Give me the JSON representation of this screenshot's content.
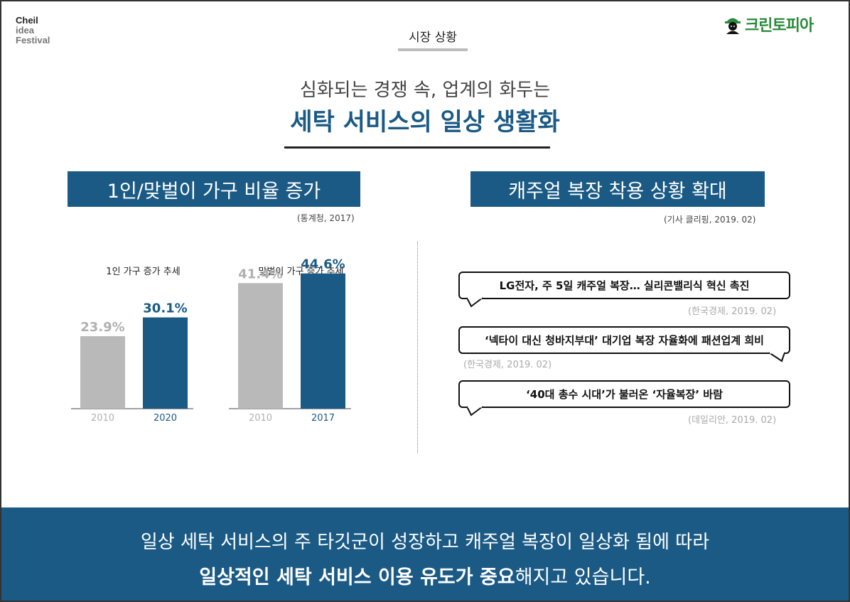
{
  "brand": {
    "line1": "Cheil",
    "line2": "idea",
    "line3": "Festival"
  },
  "logo": {
    "icon": "worker-helmet-icon",
    "text": "크린토피아",
    "color": "#2a8a3a"
  },
  "section_tag": "시장 상황",
  "subtitle": "심화되는 경쟁 속, 업계의 화두는",
  "headline": "세탁 서비스의 일상 생활화",
  "left_panel": {
    "title": "1인/맞벌이 가구 비율 증가",
    "source": "(통계청, 2017)"
  },
  "right_panel": {
    "title": "캐주얼 복장 착용 상황 확대",
    "source": "(기사 클리핑, 2019. 02)",
    "articles": [
      {
        "headline": "LG전자, 주 5일 캐주얼 복장… 실리콘밸리식 혁신 촉진",
        "citation": "(한국경제, 2019. 02)"
      },
      {
        "headline": "‘넥타이 대신 청바지부대’ 대기업 복장 자율화에 패션업계 희비",
        "citation": "(한국경제, 2019. 02)"
      },
      {
        "headline": "‘40대 총수 시대’가 불러온 ‘자율복장’ 바람",
        "citation": "(데일리안, 2019. 02)"
      }
    ]
  },
  "chart_data": [
    {
      "type": "bar",
      "title": "1인 가구 증가 추세",
      "categories": [
        "2010",
        "2020"
      ],
      "values": [
        23.9,
        30.1
      ],
      "value_labels": [
        "23.9%",
        "30.1%"
      ],
      "colors": [
        "#b9b9b9",
        "#1b5a85"
      ],
      "ylim": [
        0,
        45
      ]
    },
    {
      "type": "bar",
      "title": "맞벌이 가구 증가 추세",
      "categories": [
        "2010",
        "2017"
      ],
      "values": [
        41.4,
        44.6
      ],
      "value_labels": [
        "41.4%",
        "44.6%"
      ],
      "colors": [
        "#b9b9b9",
        "#1b5a85"
      ],
      "ylim": [
        0,
        45
      ]
    }
  ],
  "footer": {
    "line1": "일상 세탁 서비스의 주 타깃군이 성장하고 캐주얼 복장이 일상화 됨에 따라",
    "line2_bold": "일상적인 세탁 서비스 이용 유도가 중요",
    "line2_rest": "해지고 있습니다."
  }
}
